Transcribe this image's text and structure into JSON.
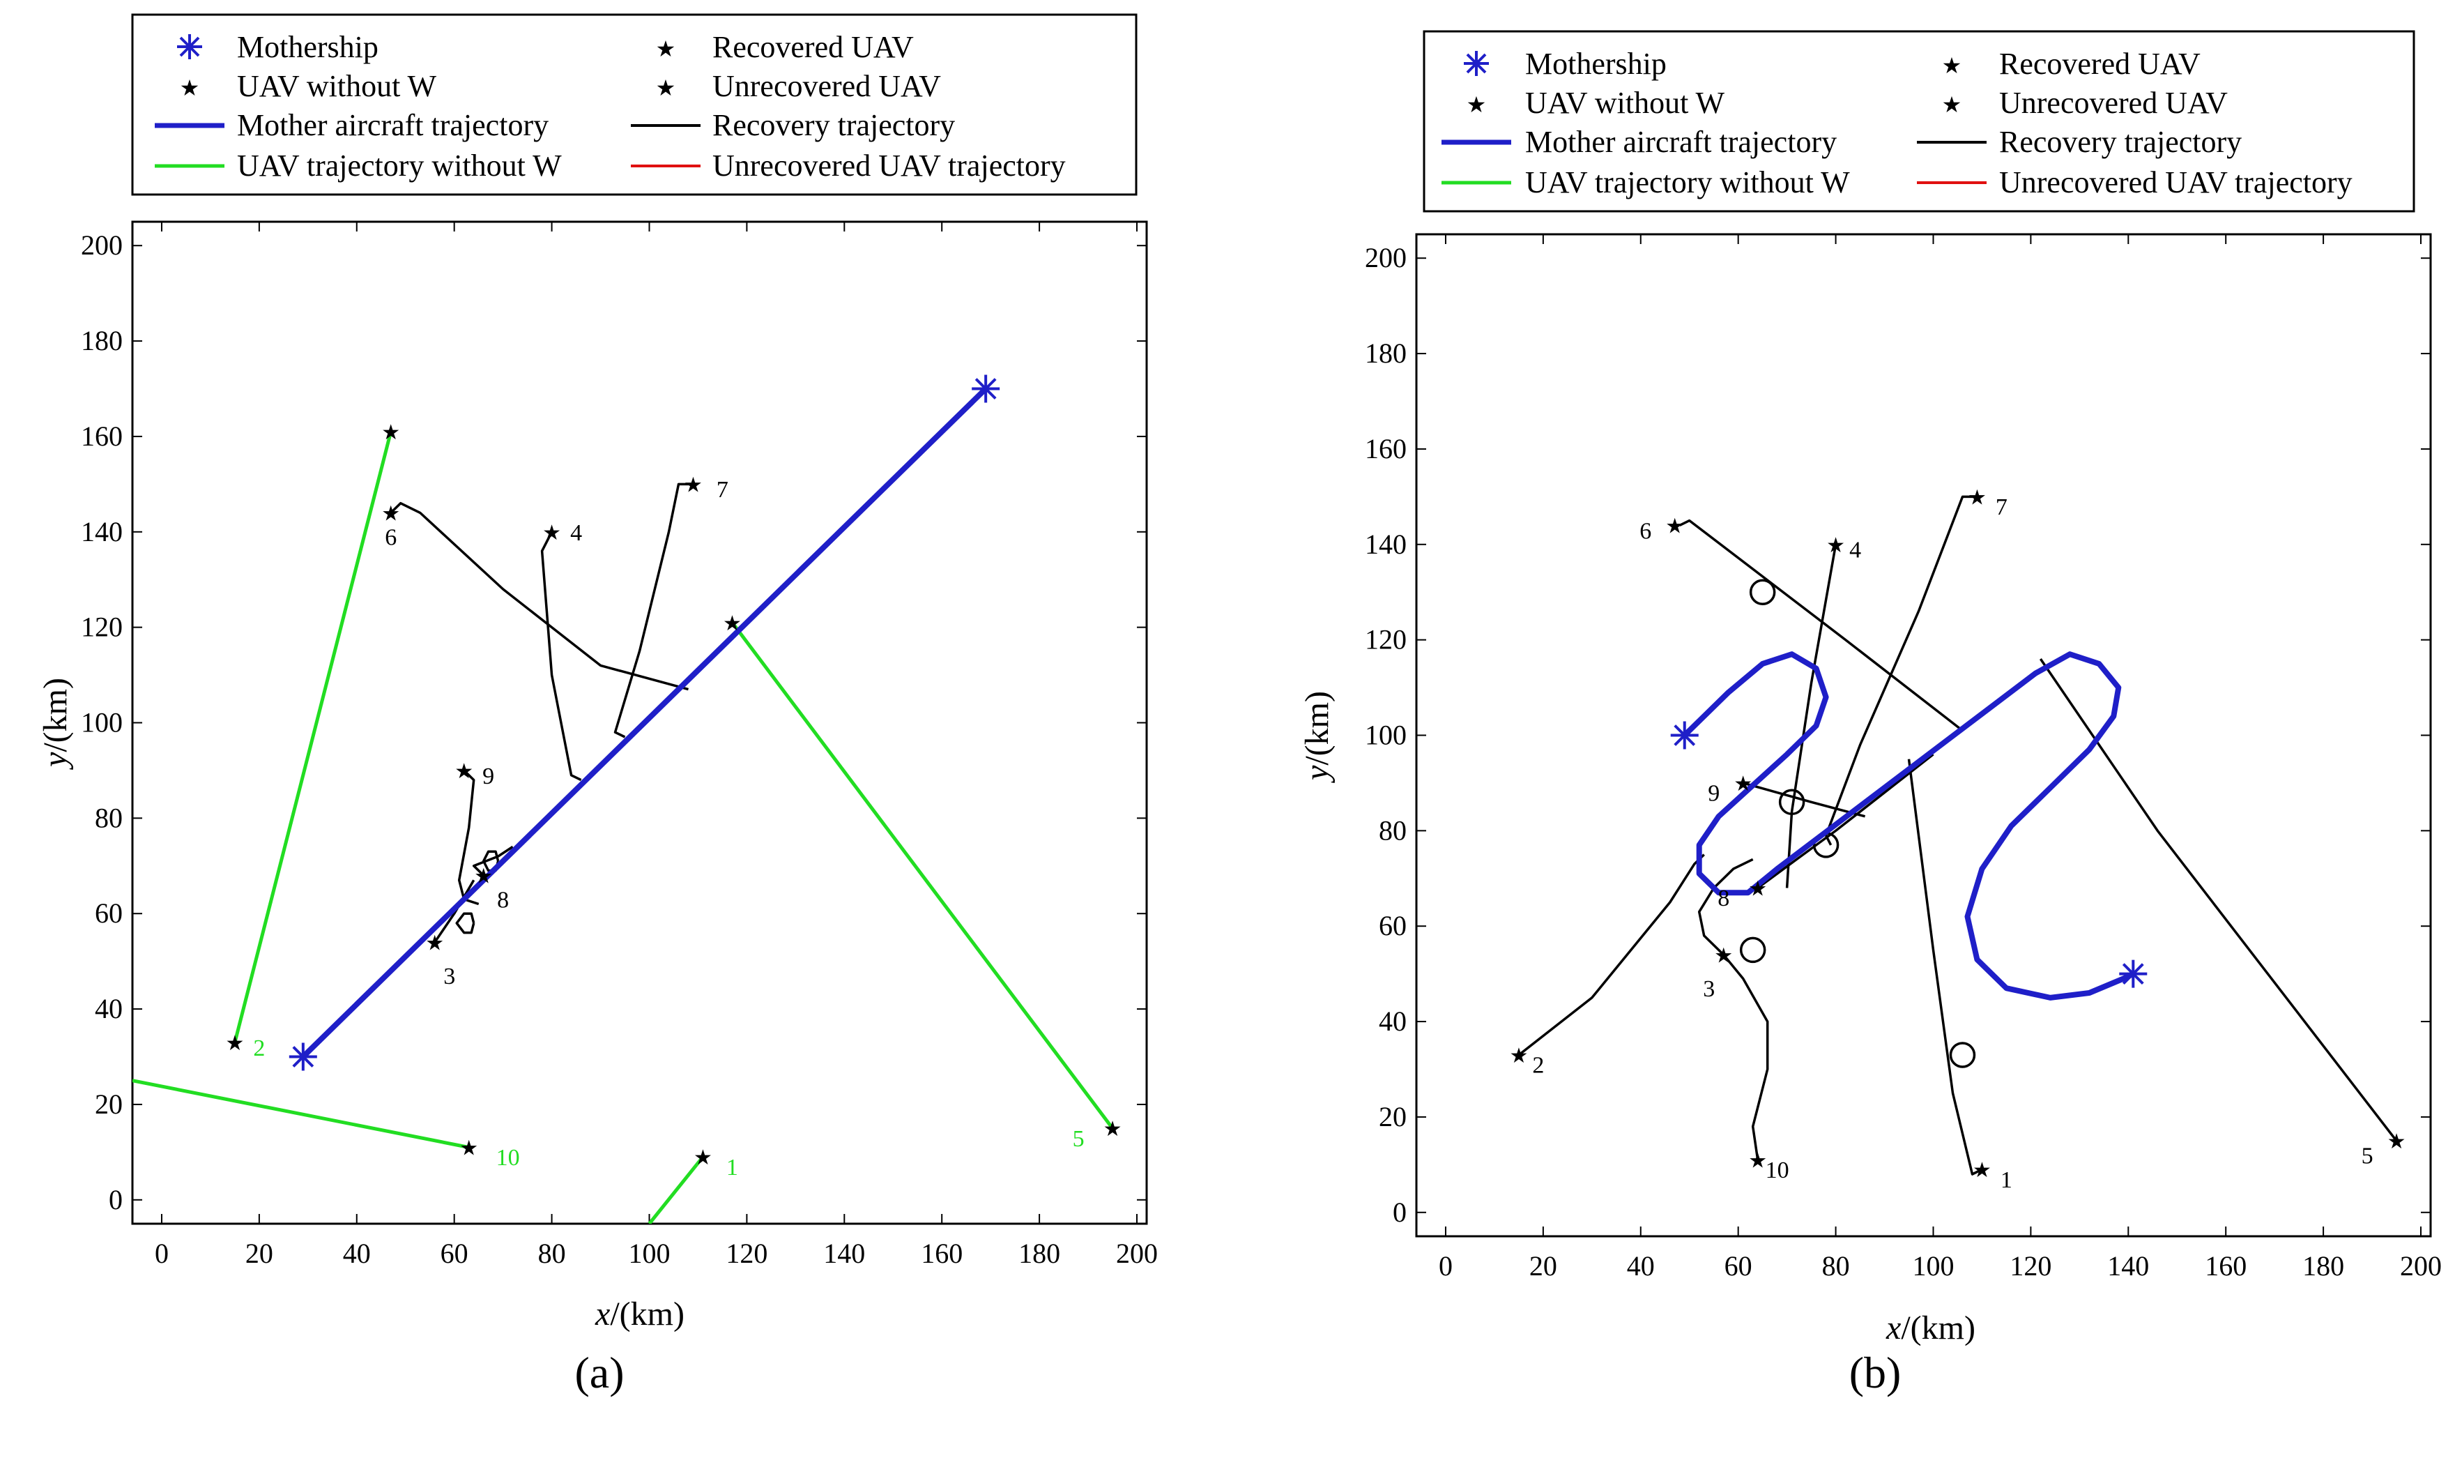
{
  "chart_data": [
    {
      "type": "line",
      "panel_label": "(a)",
      "xlabel": "x/(km)",
      "ylabel": "y/(km)",
      "xlim": [
        -6,
        202
      ],
      "ylim": [
        -5,
        205
      ],
      "xticks": [
        "0",
        "20",
        "40",
        "60",
        "80",
        "100",
        "120",
        "140",
        "160",
        "180",
        "200"
      ],
      "yticks": [
        "0",
        "20",
        "40",
        "60",
        "80",
        "100",
        "120",
        "140",
        "160",
        "180",
        "200"
      ],
      "colors": {
        "mother": "#1f1fc8",
        "green": "#22dd22",
        "black": "#000000",
        "red": "#e01010"
      },
      "legend": {
        "col1": [
          "Mothership",
          "UAV without W",
          "Mother aircraft trajectory",
          "UAV trajectory without W"
        ],
        "col2": [
          "Recovered UAV",
          "Unrecovered UAV",
          "Recovery trajectory",
          "Unrecovered UAV trajectory"
        ]
      },
      "mother_trajectory": [
        [
          29,
          30
        ],
        [
          169,
          170
        ]
      ],
      "mothership_markers": [
        [
          29,
          30
        ],
        [
          169,
          170
        ]
      ],
      "green_trajectories": [
        [
          [
            15,
            33
          ],
          [
            47,
            161
          ]
        ],
        [
          [
            117,
            121
          ],
          [
            195,
            15
          ]
        ],
        [
          [
            -6,
            25
          ],
          [
            63,
            11
          ]
        ],
        [
          [
            100,
            -5
          ],
          [
            111,
            9
          ]
        ]
      ],
      "recovery_trajectories": [
        [
          [
            47,
            144
          ],
          [
            49,
            146
          ],
          [
            53,
            144
          ],
          [
            70,
            128
          ],
          [
            90,
            112
          ],
          [
            108,
            107
          ]
        ],
        [
          [
            80,
            140
          ],
          [
            78,
            136
          ],
          [
            80,
            110
          ],
          [
            84,
            89
          ],
          [
            86,
            88
          ]
        ],
        [
          [
            109,
            150
          ],
          [
            106,
            150
          ],
          [
            104,
            140
          ],
          [
            98,
            115
          ],
          [
            93,
            98
          ],
          [
            95,
            97
          ]
        ],
        [
          [
            62,
            90
          ],
          [
            64,
            88
          ],
          [
            63,
            78
          ],
          [
            61,
            67
          ],
          [
            62,
            63
          ],
          [
            65,
            62
          ]
        ],
        [
          [
            66,
            68
          ],
          [
            64,
            70
          ],
          [
            69,
            72
          ],
          [
            72,
            74
          ]
        ],
        [
          [
            56,
            54
          ],
          [
            60,
            60
          ],
          [
            64,
            67
          ]
        ],
        [
          [
            64,
            58
          ],
          [
            63.5,
            60
          ],
          [
            62,
            60
          ],
          [
            60.5,
            58
          ],
          [
            62,
            56
          ],
          [
            63.5,
            56
          ],
          [
            64,
            58
          ]
        ],
        [
          [
            69,
            71
          ],
          [
            68.5,
            73
          ],
          [
            67,
            73
          ],
          [
            66,
            71
          ],
          [
            67,
            69
          ],
          [
            68.5,
            69
          ],
          [
            69,
            71
          ]
        ]
      ],
      "recovered_uav": [
        [
          47,
          144
        ],
        [
          80,
          140
        ],
        [
          109,
          150
        ],
        [
          62,
          90
        ],
        [
          66,
          68
        ],
        [
          56,
          54
        ]
      ],
      "uav_without_w": [
        [
          47,
          161
        ],
        [
          117,
          121
        ],
        [
          15,
          33
        ],
        [
          195,
          15
        ],
        [
          63,
          11
        ],
        [
          111,
          9
        ]
      ],
      "uav_labels": [
        {
          "text": "6",
          "pt": [
            47,
            139
          ],
          "color": "#000000"
        },
        {
          "text": "4",
          "pt": [
            85,
            140
          ],
          "color": "#000000"
        },
        {
          "text": "7",
          "pt": [
            115,
            149
          ],
          "color": "#000000"
        },
        {
          "text": "9",
          "pt": [
            67,
            89
          ],
          "color": "#000000"
        },
        {
          "text": "8",
          "pt": [
            70,
            63
          ],
          "color": "#000000"
        },
        {
          "text": "3",
          "pt": [
            59,
            47
          ],
          "color": "#000000"
        },
        {
          "text": "2",
          "pt": [
            20,
            32
          ],
          "color": "#22dd22"
        },
        {
          "text": "5",
          "pt": [
            188,
            13
          ],
          "color": "#22dd22"
        },
        {
          "text": "10",
          "pt": [
            71,
            9
          ],
          "color": "#22dd22"
        },
        {
          "text": "1",
          "pt": [
            117,
            7
          ],
          "color": "#22dd22"
        }
      ]
    },
    {
      "type": "line",
      "panel_label": "(b)",
      "xlabel": "x/(km)",
      "ylabel": "y/(km)",
      "xlim": [
        -6,
        202
      ],
      "ylim": [
        -5,
        205
      ],
      "xticks": [
        "0",
        "20",
        "40",
        "60",
        "80",
        "100",
        "120",
        "140",
        "160",
        "180",
        "200"
      ],
      "yticks": [
        "0",
        "20",
        "40",
        "60",
        "80",
        "100",
        "120",
        "140",
        "160",
        "180",
        "200"
      ],
      "colors": {
        "mother": "#1f1fc8",
        "green": "#22dd22",
        "black": "#000000",
        "red": "#e01010"
      },
      "legend": {
        "col1": [
          "Mothership",
          "UAV without W",
          "Mother aircraft trajectory",
          "UAV trajectory without W"
        ],
        "col2": [
          "Recovered UAV",
          "Unrecovered UAV",
          "Recovery trajectory",
          "Unrecovered UAV trajectory"
        ]
      },
      "mother_trajectory": [
        [
          49,
          100
        ],
        [
          58,
          109
        ],
        [
          65,
          115
        ],
        [
          71,
          117
        ],
        [
          76,
          114
        ],
        [
          78,
          108
        ],
        [
          76,
          102
        ],
        [
          70,
          96
        ],
        [
          56,
          83
        ],
        [
          52,
          77
        ],
        [
          52,
          71
        ],
        [
          56,
          67
        ],
        [
          62,
          67
        ],
        [
          68,
          72
        ],
        [
          121,
          113
        ],
        [
          128,
          117
        ],
        [
          134,
          115
        ],
        [
          138,
          110
        ],
        [
          137,
          104
        ],
        [
          132,
          97
        ],
        [
          124,
          89
        ],
        [
          116,
          81
        ],
        [
          110,
          72
        ],
        [
          107,
          62
        ],
        [
          109,
          53
        ],
        [
          115,
          47
        ],
        [
          124,
          45
        ],
        [
          132,
          46
        ],
        [
          139,
          49
        ],
        [
          141,
          50
        ]
      ],
      "mothership_markers": [
        [
          49,
          100
        ],
        [
          141,
          50
        ]
      ],
      "green_trajectories": [],
      "recovery_trajectories": [
        [
          [
            48,
            144
          ],
          [
            50,
            145
          ],
          [
            82,
            120
          ],
          [
            106,
            101
          ]
        ],
        [
          [
            80,
            140
          ],
          [
            75,
            111
          ],
          [
            71,
            84
          ],
          [
            70,
            68
          ]
        ],
        [
          [
            109,
            150
          ],
          [
            106,
            150
          ],
          [
            97,
            126
          ],
          [
            85,
            98
          ],
          [
            78,
            79
          ],
          [
            79,
            77
          ]
        ],
        [
          [
            61,
            90
          ],
          [
            75,
            86
          ],
          [
            86,
            83
          ]
        ],
        [
          [
            64,
            68
          ],
          [
            72,
            74
          ],
          [
            80,
            80
          ],
          [
            100,
            96
          ]
        ],
        [
          [
            57,
            54
          ],
          [
            53,
            58
          ],
          [
            52,
            63
          ],
          [
            55,
            68
          ],
          [
            59,
            72
          ],
          [
            63,
            74
          ]
        ],
        [
          [
            15,
            33
          ],
          [
            30,
            45
          ],
          [
            46,
            65
          ],
          [
            51,
            73
          ],
          [
            53,
            75
          ]
        ],
        [
          [
            64,
            11
          ],
          [
            63,
            18
          ],
          [
            66,
            30
          ],
          [
            66,
            40
          ],
          [
            61,
            49
          ],
          [
            57,
            54
          ]
        ],
        [
          [
            110,
            9
          ],
          [
            108,
            8
          ],
          [
            104,
            25
          ],
          [
            100,
            55
          ],
          [
            95,
            95
          ]
        ],
        [
          [
            195,
            15
          ],
          [
            146,
            80
          ],
          [
            122,
            116
          ]
        ]
      ],
      "recovery_circles": [
        [
          65,
          130
        ],
        [
          71,
          86
        ],
        [
          78,
          77
        ],
        [
          63,
          55
        ],
        [
          106,
          33
        ]
      ],
      "recovered_uav": [
        [
          47,
          144
        ],
        [
          80,
          140
        ],
        [
          109,
          150
        ],
        [
          61,
          90
        ],
        [
          64,
          68
        ],
        [
          57,
          54
        ],
        [
          15,
          33
        ],
        [
          64,
          11
        ],
        [
          110,
          9
        ],
        [
          195,
          15
        ]
      ],
      "uav_without_w": [],
      "uav_labels": [
        {
          "text": "6",
          "pt": [
            41,
            143
          ],
          "color": "#000000"
        },
        {
          "text": "4",
          "pt": [
            84,
            139
          ],
          "color": "#000000"
        },
        {
          "text": "7",
          "pt": [
            114,
            148
          ],
          "color": "#000000"
        },
        {
          "text": "9",
          "pt": [
            55,
            88
          ],
          "color": "#000000"
        },
        {
          "text": "8",
          "pt": [
            57,
            66
          ],
          "color": "#000000"
        },
        {
          "text": "3",
          "pt": [
            54,
            47
          ],
          "color": "#000000"
        },
        {
          "text": "2",
          "pt": [
            19,
            31
          ],
          "color": "#000000"
        },
        {
          "text": "10",
          "pt": [
            68,
            9
          ],
          "color": "#000000"
        },
        {
          "text": "1",
          "pt": [
            115,
            7
          ],
          "color": "#000000"
        },
        {
          "text": "5",
          "pt": [
            189,
            12
          ],
          "color": "#000000"
        }
      ]
    }
  ]
}
